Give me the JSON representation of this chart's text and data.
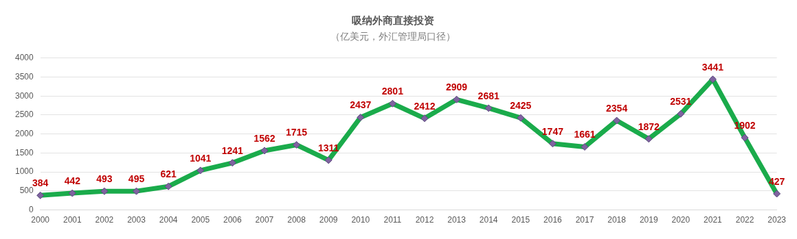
{
  "chart_data": {
    "type": "line",
    "title": "吸纳外商直接投资",
    "subtitle": "（亿美元，外汇管理局口径）",
    "categories": [
      "2000",
      "2001",
      "2002",
      "2003",
      "2004",
      "2005",
      "2006",
      "2007",
      "2008",
      "2009",
      "2010",
      "2011",
      "2012",
      "2013",
      "2014",
      "2015",
      "2016",
      "2017",
      "2018",
      "2019",
      "2020",
      "2021",
      "2022",
      "2023"
    ],
    "series": [
      {
        "color": "#1aab4b",
        "values": [
          384,
          442,
          493,
          495,
          621,
          1041,
          1241,
          1562,
          1715,
          1311,
          2437,
          2801,
          2412,
          2909,
          2681,
          2425,
          1747,
          1661,
          2354,
          1872,
          2531,
          3441,
          1902,
          427
        ]
      }
    ],
    "ylim": [
      0,
      4000
    ],
    "yticks": [
      0,
      500,
      1000,
      1500,
      2000,
      2500,
      3000,
      3500,
      4000
    ],
    "grid": "y",
    "legend": false,
    "marker": "diamond",
    "line_style": "solid",
    "data_labels": true
  }
}
